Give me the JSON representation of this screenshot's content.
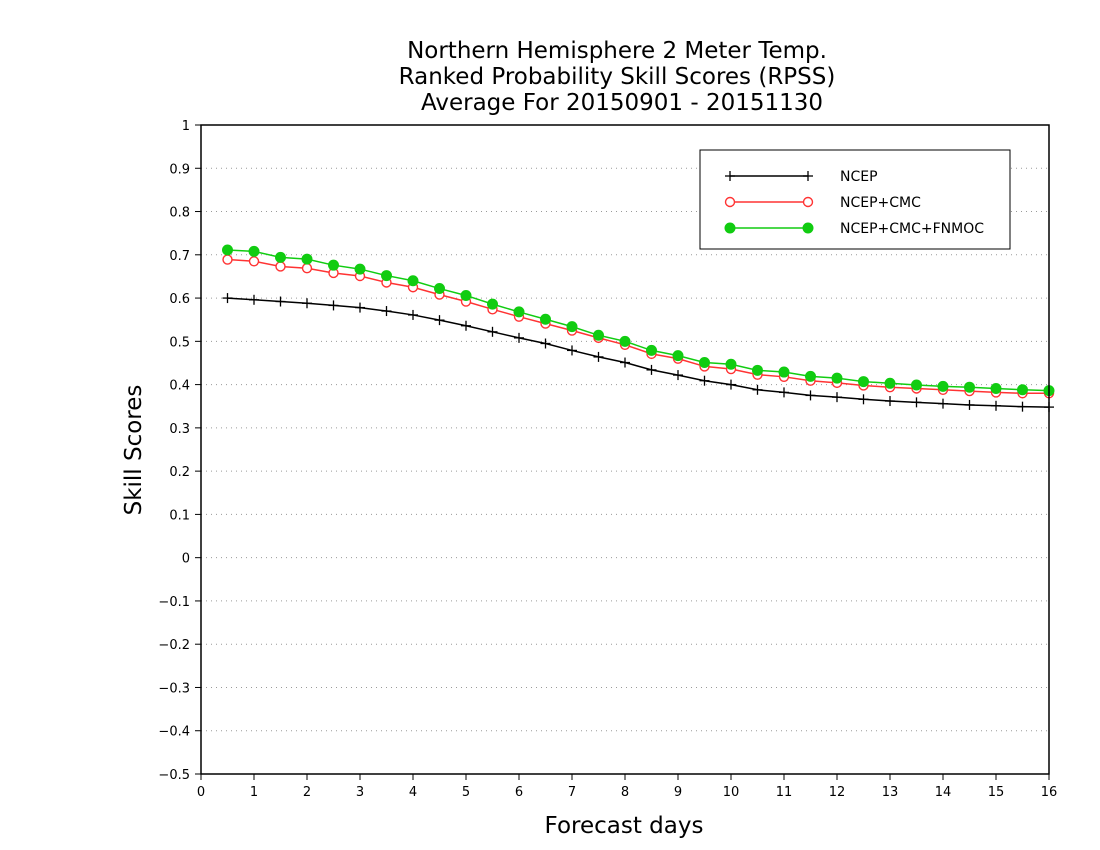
{
  "chart_data": {
    "type": "line",
    "title_lines": [
      "Northern Hemisphere 2 Meter Temp.",
      "Ranked Probability Skill Scores (RPSS)",
      "Average For 20150901 - 20151130"
    ],
    "xlabel": "Forecast days",
    "ylabel": "Skill Scores",
    "xlim": [
      0,
      16
    ],
    "ylim": [
      -0.5,
      1
    ],
    "xticks": [
      0,
      1,
      2,
      3,
      4,
      5,
      6,
      7,
      8,
      9,
      10,
      11,
      12,
      13,
      14,
      15,
      16
    ],
    "yticks": [
      -0.5,
      -0.4,
      -0.3,
      -0.2,
      -0.1,
      0,
      0.1,
      0.2,
      0.3,
      0.4,
      0.5,
      0.6,
      0.7,
      0.8,
      0.9,
      1
    ],
    "ytick_labels": [
      "−0.5",
      "−0.4",
      "−0.3",
      "−0.2",
      "−0.1",
      "0",
      "0.1",
      "0.2",
      "0.3",
      "0.4",
      "0.5",
      "0.6",
      "0.7",
      "0.8",
      "0.9",
      "1"
    ],
    "grid": "horizontal-dotted",
    "legend_position": "top-right",
    "x": [
      0.5,
      1,
      1.5,
      2,
      2.5,
      3,
      3.5,
      4,
      4.5,
      5,
      5.5,
      6,
      6.5,
      7,
      7.5,
      8,
      8.5,
      9,
      9.5,
      10,
      10.5,
      11,
      11.5,
      12,
      12.5,
      13,
      13.5,
      14,
      14.5,
      15,
      15.5,
      16
    ],
    "series": [
      {
        "name": "NCEP",
        "color": "#000000",
        "marker": "plus",
        "values": [
          0.6,
          0.596,
          0.592,
          0.588,
          0.583,
          0.578,
          0.57,
          0.561,
          0.549,
          0.536,
          0.522,
          0.508,
          0.495,
          0.479,
          0.464,
          0.451,
          0.434,
          0.422,
          0.409,
          0.4,
          0.388,
          0.382,
          0.375,
          0.371,
          0.366,
          0.362,
          0.359,
          0.356,
          0.353,
          0.351,
          0.349,
          0.348
        ]
      },
      {
        "name": "NCEP+CMC",
        "color": "#ff3333",
        "marker": "open-circle",
        "values": [
          0.689,
          0.685,
          0.673,
          0.669,
          0.658,
          0.651,
          0.636,
          0.625,
          0.608,
          0.592,
          0.574,
          0.557,
          0.541,
          0.525,
          0.508,
          0.492,
          0.471,
          0.46,
          0.442,
          0.436,
          0.423,
          0.418,
          0.409,
          0.404,
          0.398,
          0.394,
          0.391,
          0.388,
          0.385,
          0.382,
          0.38,
          0.38
        ]
      },
      {
        "name": "NCEP+CMC+FNMOC",
        "color": "#11cc11",
        "marker": "filled-circle",
        "values": [
          0.711,
          0.708,
          0.694,
          0.69,
          0.676,
          0.667,
          0.652,
          0.64,
          0.622,
          0.606,
          0.586,
          0.568,
          0.551,
          0.534,
          0.514,
          0.5,
          0.479,
          0.467,
          0.451,
          0.447,
          0.433,
          0.429,
          0.419,
          0.415,
          0.407,
          0.403,
          0.399,
          0.396,
          0.394,
          0.391,
          0.388,
          0.386
        ]
      }
    ]
  }
}
